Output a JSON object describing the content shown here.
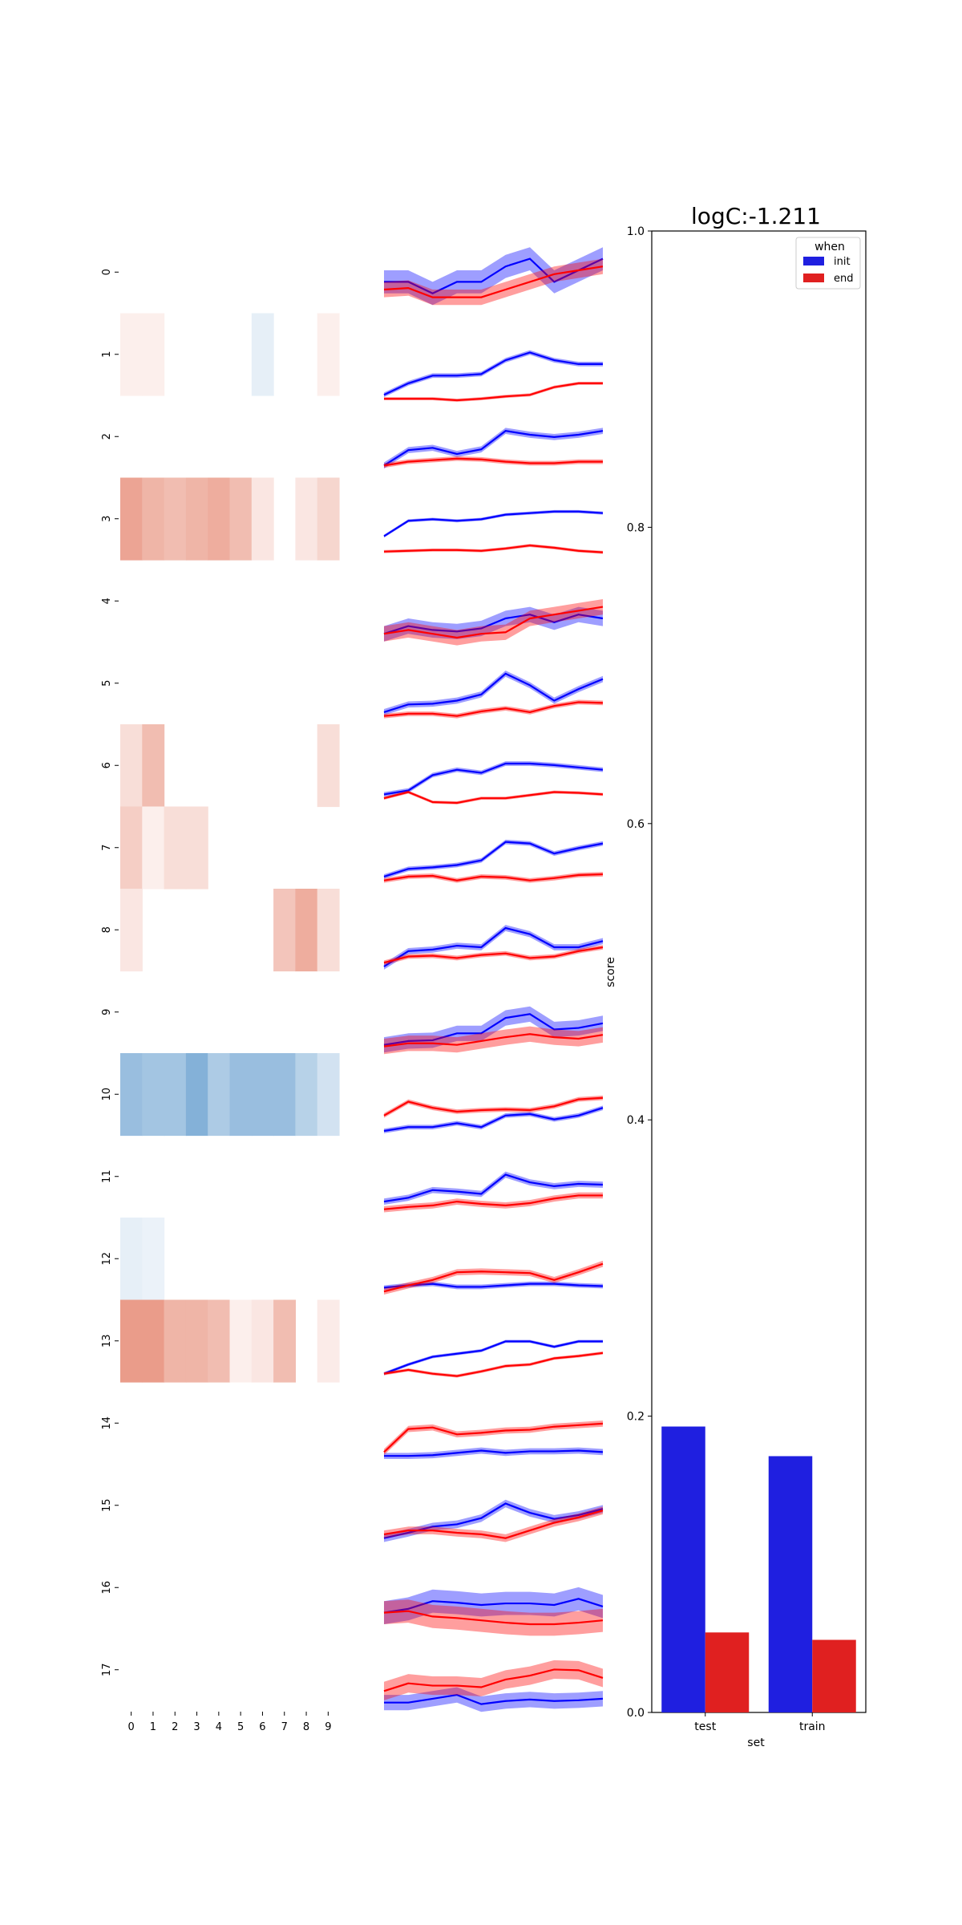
{
  "chart_data": [
    {
      "type": "heatmap",
      "rows": [
        "0",
        "1",
        "2",
        "3",
        "4",
        "5",
        "6",
        "7",
        "8",
        "9",
        "10",
        "11",
        "12",
        "13",
        "14",
        "15",
        "16",
        "17"
      ],
      "cols": [
        "0",
        "1",
        "2",
        "3",
        "4",
        "5",
        "6",
        "7",
        "8",
        "9"
      ],
      "values": [
        [
          0,
          0,
          0,
          0,
          0,
          0,
          0,
          0,
          0,
          0
        ],
        [
          0.1,
          0.1,
          0,
          0,
          0,
          0,
          -0.12,
          0,
          0,
          0.1
        ],
        [
          0,
          0,
          0,
          0,
          0,
          0,
          0,
          0,
          0,
          0
        ],
        [
          0.55,
          0.45,
          0.4,
          0.45,
          0.5,
          0.4,
          0.15,
          0,
          0.15,
          0.25
        ],
        [
          0,
          0,
          0,
          0,
          0,
          0,
          0,
          0,
          0,
          0
        ],
        [
          0,
          0,
          0,
          0,
          0,
          0,
          0,
          0,
          0,
          0
        ],
        [
          0.2,
          0.4,
          0,
          0,
          0,
          0,
          0,
          0,
          0,
          0.2
        ],
        [
          0.3,
          0.1,
          0.2,
          0.2,
          0,
          0,
          0,
          0,
          0,
          0
        ],
        [
          0.15,
          0,
          0,
          0,
          0,
          0,
          0,
          0.35,
          0.5,
          0.2
        ],
        [
          0,
          0,
          0,
          0,
          0,
          0,
          0,
          0,
          0,
          0
        ],
        [
          -0.5,
          -0.45,
          -0.45,
          -0.6,
          -0.4,
          -0.5,
          -0.5,
          -0.5,
          -0.35,
          -0.22
        ],
        [
          0,
          0,
          0,
          0,
          0,
          0,
          0,
          0,
          0,
          0
        ],
        [
          -0.12,
          -0.1,
          0,
          0,
          0,
          0,
          0,
          0,
          0,
          0
        ],
        [
          0.6,
          0.6,
          0.45,
          0.45,
          0.4,
          0.1,
          0.15,
          0.4,
          0,
          0.12
        ],
        [
          0,
          0,
          0,
          0,
          0,
          0,
          0,
          0,
          0,
          0
        ],
        [
          0,
          0,
          0,
          0,
          0,
          0,
          0,
          0,
          0,
          0
        ],
        [
          0,
          0,
          0,
          0,
          0,
          0,
          0,
          0,
          0,
          0
        ],
        [
          0,
          0,
          0,
          0,
          0,
          0,
          0,
          0,
          0,
          0
        ]
      ]
    },
    {
      "type": "line",
      "x": [
        0,
        1,
        2,
        3,
        4,
        5,
        6,
        7,
        8,
        9
      ],
      "series": [
        {
          "color": "#0000ff",
          "rows": [
            {
              "values": [
                0.6,
                0.6,
                0.45,
                0.6,
                0.6,
                0.8,
                0.9,
                0.6,
                0.75,
                0.9
              ],
              "band": 0.15
            },
            {
              "values": [
                0.2,
                0.35,
                0.45,
                0.45,
                0.47,
                0.65,
                0.75,
                0.65,
                0.6,
                0.6
              ],
              "band": 0.03
            },
            {
              "values": [
                0.35,
                0.55,
                0.58,
                0.5,
                0.56,
                0.8,
                0.75,
                0.72,
                0.75,
                0.8
              ],
              "band": 0.04
            },
            {
              "values": [
                0.5,
                0.7,
                0.72,
                0.7,
                0.72,
                0.78,
                0.8,
                0.82,
                0.82,
                0.8
              ],
              "band": 0.02
            },
            {
              "values": [
                0.3,
                0.4,
                0.35,
                0.33,
                0.37,
                0.5,
                0.55,
                0.45,
                0.55,
                0.5
              ],
              "band": 0.1
            },
            {
              "values": [
                0.35,
                0.45,
                0.46,
                0.5,
                0.58,
                0.85,
                0.7,
                0.5,
                0.65,
                0.78
              ],
              "band": 0.04
            },
            {
              "values": [
                0.35,
                0.4,
                0.6,
                0.67,
                0.63,
                0.75,
                0.75,
                0.73,
                0.7,
                0.67
              ],
              "band": 0.03
            },
            {
              "values": [
                0.35,
                0.45,
                0.47,
                0.5,
                0.56,
                0.8,
                0.78,
                0.65,
                0.72,
                0.78
              ],
              "band": 0.03
            },
            {
              "values": [
                0.25,
                0.45,
                0.47,
                0.52,
                0.5,
                0.75,
                0.67,
                0.5,
                0.5,
                0.58
              ],
              "band": 0.04
            },
            {
              "values": [
                0.3,
                0.35,
                0.36,
                0.45,
                0.45,
                0.65,
                0.7,
                0.5,
                0.52,
                0.58
              ],
              "band": 0.1
            },
            {
              "values": [
                0.25,
                0.3,
                0.3,
                0.35,
                0.3,
                0.45,
                0.47,
                0.4,
                0.45,
                0.55
              ],
              "band": 0.03
            },
            {
              "values": [
                0.4,
                0.45,
                0.55,
                0.53,
                0.5,
                0.75,
                0.65,
                0.6,
                0.63,
                0.62
              ],
              "band": 0.04
            },
            {
              "values": [
                0.35,
                0.38,
                0.4,
                0.36,
                0.36,
                0.38,
                0.4,
                0.4,
                0.38,
                0.37
              ],
              "band": 0.03
            },
            {
              "values": [
                0.3,
                0.42,
                0.52,
                0.56,
                0.6,
                0.72,
                0.72,
                0.65,
                0.72,
                0.72
              ],
              "band": 0.02
            },
            {
              "values": [
                0.3,
                0.3,
                0.31,
                0.34,
                0.37,
                0.34,
                0.36,
                0.36,
                0.37,
                0.35
              ],
              "band": 0.04
            },
            {
              "values": [
                0.3,
                0.37,
                0.45,
                0.48,
                0.56,
                0.75,
                0.63,
                0.55,
                0.6,
                0.68
              ],
              "band": 0.05
            },
            {
              "values": [
                0.4,
                0.45,
                0.55,
                0.53,
                0.5,
                0.52,
                0.52,
                0.5,
                0.58,
                0.48
              ],
              "band": 0.15
            },
            {
              "values": [
                0.3,
                0.3,
                0.35,
                0.4,
                0.28,
                0.32,
                0.34,
                0.32,
                0.33,
                0.35
              ],
              "band": 0.1
            }
          ]
        },
        {
          "color": "#ff0000",
          "rows": [
            {
              "values": [
                0.5,
                0.52,
                0.4,
                0.4,
                0.4,
                0.5,
                0.6,
                0.7,
                0.75,
                0.8
              ],
              "band": 0.1
            },
            {
              "values": [
                0.15,
                0.15,
                0.15,
                0.13,
                0.15,
                0.18,
                0.2,
                0.3,
                0.35,
                0.35
              ],
              "band": 0.02
            },
            {
              "values": [
                0.35,
                0.4,
                0.42,
                0.44,
                0.43,
                0.4,
                0.38,
                0.38,
                0.4,
                0.4
              ],
              "band": 0.03
            },
            {
              "values": [
                0.3,
                0.31,
                0.32,
                0.32,
                0.31,
                0.34,
                0.38,
                0.35,
                0.31,
                0.29
              ],
              "band": 0.02
            },
            {
              "values": [
                0.3,
                0.35,
                0.3,
                0.25,
                0.3,
                0.32,
                0.5,
                0.55,
                0.6,
                0.65
              ],
              "band": 0.1
            },
            {
              "values": [
                0.3,
                0.33,
                0.33,
                0.3,
                0.36,
                0.4,
                0.35,
                0.43,
                0.48,
                0.47
              ],
              "band": 0.03
            },
            {
              "values": [
                0.3,
                0.38,
                0.25,
                0.24,
                0.3,
                0.3,
                0.34,
                0.38,
                0.37,
                0.35
              ],
              "band": 0.02
            },
            {
              "values": [
                0.3,
                0.35,
                0.36,
                0.3,
                0.35,
                0.34,
                0.3,
                0.33,
                0.37,
                0.38
              ],
              "band": 0.03
            },
            {
              "values": [
                0.3,
                0.38,
                0.39,
                0.36,
                0.4,
                0.42,
                0.36,
                0.38,
                0.45,
                0.5
              ],
              "band": 0.03
            },
            {
              "values": [
                0.28,
                0.32,
                0.32,
                0.3,
                0.35,
                0.4,
                0.44,
                0.4,
                0.38,
                0.43
              ],
              "band": 0.1
            },
            {
              "values": [
                0.45,
                0.63,
                0.55,
                0.5,
                0.52,
                0.53,
                0.52,
                0.57,
                0.66,
                0.68
              ],
              "band": 0.03
            },
            {
              "values": [
                0.3,
                0.33,
                0.35,
                0.4,
                0.37,
                0.35,
                0.38,
                0.44,
                0.48,
                0.48
              ],
              "band": 0.04
            },
            {
              "values": [
                0.3,
                0.38,
                0.45,
                0.55,
                0.56,
                0.55,
                0.54,
                0.45,
                0.55,
                0.66
              ],
              "band": 0.04
            },
            {
              "values": [
                0.3,
                0.35,
                0.3,
                0.27,
                0.33,
                0.4,
                0.42,
                0.5,
                0.53,
                0.57
              ],
              "band": 0.02
            },
            {
              "values": [
                0.35,
                0.65,
                0.67,
                0.58,
                0.6,
                0.63,
                0.64,
                0.68,
                0.7,
                0.72
              ],
              "band": 0.04
            },
            {
              "values": [
                0.35,
                0.4,
                0.4,
                0.37,
                0.35,
                0.3,
                0.4,
                0.5,
                0.57,
                0.66
              ],
              "band": 0.05
            },
            {
              "values": [
                0.4,
                0.42,
                0.35,
                0.33,
                0.3,
                0.27,
                0.25,
                0.25,
                0.27,
                0.3
              ],
              "band": 0.15
            },
            {
              "values": [
                0.45,
                0.55,
                0.52,
                0.52,
                0.5,
                0.6,
                0.65,
                0.73,
                0.72,
                0.62
              ],
              "band": 0.12
            }
          ]
        }
      ]
    },
    {
      "type": "bar",
      "title": "logC:-1.211",
      "xlabel": "set",
      "ylabel": "score",
      "categories": [
        "test",
        "train"
      ],
      "series": [
        {
          "name": "init",
          "color": "#1f1fe0",
          "values": [
            0.193,
            0.173
          ]
        },
        {
          "name": "end",
          "color": "#e02020",
          "values": [
            0.054,
            0.049
          ]
        }
      ],
      "ylim": [
        0,
        1.0
      ],
      "yticks": [
        "0.0",
        "0.2",
        "0.4",
        "0.6",
        "0.8",
        "1.0"
      ],
      "legend": {
        "title": "when",
        "placement": "top-right"
      }
    }
  ]
}
